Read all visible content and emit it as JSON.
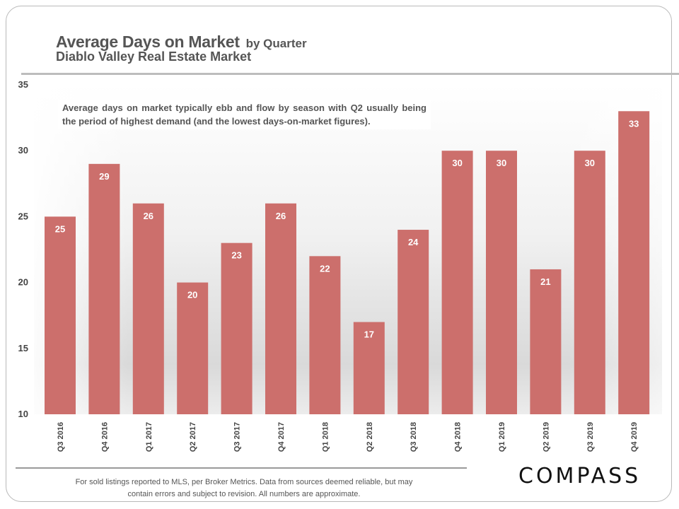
{
  "header": {
    "title_main": "Average Days on Market",
    "title_suffix": "by Quarter",
    "subtitle": "Diablo Valley Real Estate Market"
  },
  "annotation": "Average days on market typically ebb and flow by season with Q2 usually being the period of highest demand (and the lowest days-on-market figures).",
  "footer": {
    "line1": "For sold listings reported to MLS, per Broker Metrics. Data from sources deemed reliable, but may",
    "line2": "contain errors and subject to revision. All numbers are approximate."
  },
  "logo_text": "COMPASS",
  "colors": {
    "bar": "#cc6f6c",
    "text": "#555555"
  },
  "chart_data": {
    "type": "bar",
    "title": "Average Days on Market by Quarter",
    "subtitle": "Diablo Valley Real Estate Market",
    "categories": [
      "Q3 2016",
      "Q4 2016",
      "Q1 2017",
      "Q2 2017",
      "Q3 2017",
      "Q4 2017",
      "Q1 2018",
      "Q2 2018",
      "Q3 2018",
      "Q4 2018",
      "Q1 2019",
      "Q2 2019",
      "Q3 2019",
      "Q4 2019"
    ],
    "values": [
      25,
      29,
      26,
      20,
      23,
      26,
      22,
      17,
      24,
      30,
      30,
      21,
      30,
      33
    ],
    "ylim": [
      10,
      35
    ],
    "yticks": [
      10,
      15,
      20,
      25,
      30,
      35
    ],
    "xlabel": "",
    "ylabel": "",
    "grid": false,
    "data_labels": true,
    "legend": "none"
  }
}
